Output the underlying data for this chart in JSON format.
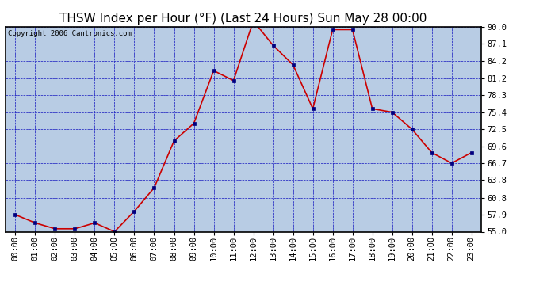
{
  "title": "THSW Index per Hour (°F) (Last 24 Hours) Sun May 28 00:00",
  "copyright": "Copyright 2006 Cantronics.com",
  "hours": [
    0,
    1,
    2,
    3,
    4,
    5,
    6,
    7,
    8,
    9,
    10,
    11,
    12,
    13,
    14,
    15,
    16,
    17,
    18,
    19,
    20,
    21,
    22,
    23
  ],
  "hour_labels": [
    "00:00",
    "01:00",
    "02:00",
    "03:00",
    "04:00",
    "05:00",
    "06:00",
    "07:00",
    "08:00",
    "09:00",
    "10:00",
    "11:00",
    "12:00",
    "13:00",
    "14:00",
    "15:00",
    "16:00",
    "17:00",
    "18:00",
    "19:00",
    "20:00",
    "21:00",
    "22:00",
    "23:00"
  ],
  "values": [
    57.9,
    56.5,
    55.5,
    55.5,
    56.5,
    55.0,
    58.5,
    62.5,
    70.5,
    73.5,
    82.5,
    80.8,
    91.0,
    86.8,
    83.5,
    76.0,
    89.5,
    89.5,
    76.0,
    75.4,
    72.5,
    68.5,
    66.7,
    68.5
  ],
  "ylim": [
    55.0,
    90.0
  ],
  "yticks": [
    55.0,
    57.9,
    60.8,
    63.8,
    66.7,
    69.6,
    72.5,
    75.4,
    78.3,
    81.2,
    84.2,
    87.1,
    90.0
  ],
  "ytick_labels": [
    "55.0",
    "57.9",
    "60.8",
    "63.8",
    "66.7",
    "69.6",
    "72.5",
    "75.4",
    "78.3",
    "81.2",
    "84.2",
    "87.1",
    "90.0"
  ],
  "line_color": "#cc0000",
  "marker_color": "#000080",
  "plot_bg_color": "#b8cce4",
  "grid_color": "#0000bb",
  "outer_bg": "#ffffff",
  "title_fontsize": 11,
  "copyright_fontsize": 6.5,
  "tick_fontsize": 7.5
}
